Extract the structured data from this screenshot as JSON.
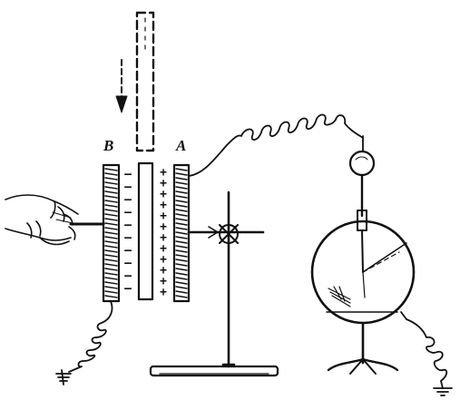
{
  "labels": {
    "plate_b": "B",
    "plate_a": "A"
  },
  "signs": {
    "negative": [
      "–",
      "–",
      "–",
      "–",
      "–",
      "–",
      "–",
      "–",
      "–",
      "–"
    ],
    "positive": [
      "+",
      "+",
      "+",
      "+",
      "+",
      "+",
      "+",
      "+",
      "+",
      "+",
      "+",
      "+"
    ]
  },
  "colors": {
    "ink": "#111111",
    "paper": "#ffffff"
  },
  "icons": {
    "hand": "hand-icon",
    "arrow": "down-arrow-icon",
    "electroscope": "electroscope-icon",
    "ground": "ground-icon"
  }
}
